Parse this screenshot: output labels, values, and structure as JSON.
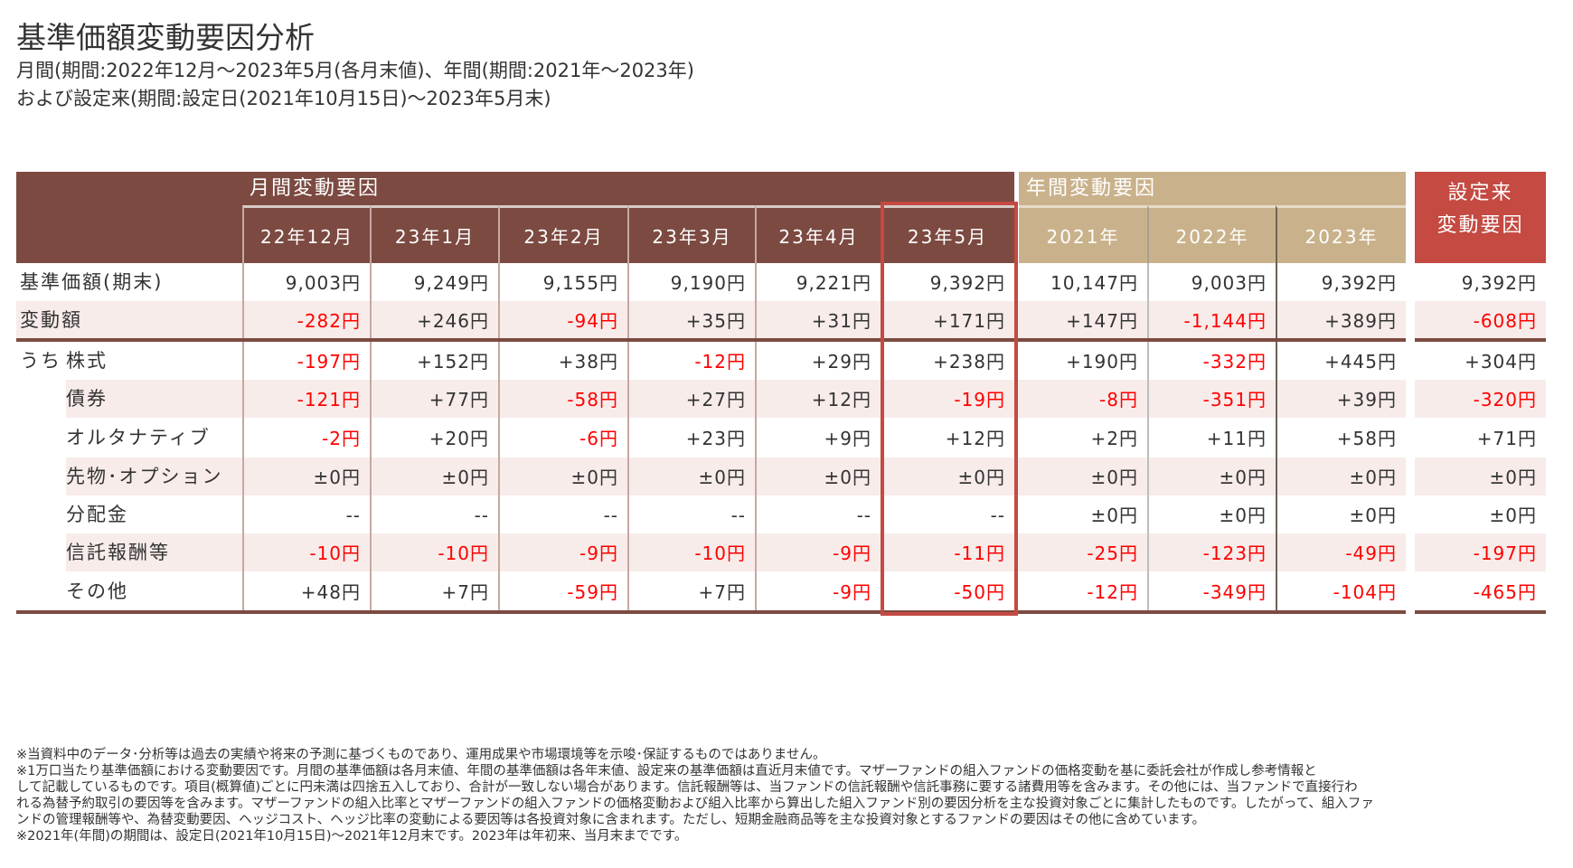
{
  "title": "基準価額変動要因分析",
  "subtitle_lines": [
    "月間(期間:2022年12月～2023年5月(各月末値)、年間(期間:2021年～2023年)",
    "および設定来(期間:設定日(2021年10月15日)～2023年5月末)"
  ],
  "headers": {
    "monthly_group": "月間変動要因",
    "annual_group": "年間変動要因",
    "since_inception": [
      "設定来",
      "変動要因"
    ],
    "monthly_columns": [
      "22年12月",
      "23年1月",
      "23年2月",
      "23年3月",
      "23年4月",
      "23年5月"
    ],
    "annual_columns": [
      "2021年",
      "2022年",
      "2023年"
    ],
    "highlighted_column": "23年5月"
  },
  "row_prefix": "うち",
  "rows": [
    {
      "label": "基準価額(期末)",
      "values": [
        "9,003円",
        "9,249円",
        "9,155円",
        "9,190円",
        "9,221円",
        "9,392円",
        "10,147円",
        "9,003円",
        "9,392円",
        "9,392円"
      ]
    },
    {
      "label": "変動額",
      "values": [
        "-282円",
        "+246円",
        "-94円",
        "+35円",
        "+31円",
        "+171円",
        "+147円",
        "-1,144円",
        "+389円",
        "-608円"
      ]
    },
    {
      "label": "株式",
      "values": [
        "-197円",
        "+152円",
        "+38円",
        "-12円",
        "+29円",
        "+238円",
        "+190円",
        "-332円",
        "+445円",
        "+304円"
      ]
    },
    {
      "label": "債券",
      "values": [
        "-121円",
        "+77円",
        "-58円",
        "+27円",
        "+12円",
        "-19円",
        "-8円",
        "-351円",
        "+39円",
        "-320円"
      ]
    },
    {
      "label": "オルタナティブ",
      "values": [
        "-2円",
        "+20円",
        "-6円",
        "+23円",
        "+9円",
        "+12円",
        "+2円",
        "+11円",
        "+58円",
        "+71円"
      ]
    },
    {
      "label": "先物･オプション",
      "values": [
        "±0円",
        "±0円",
        "±0円",
        "±0円",
        "±0円",
        "±0円",
        "±0円",
        "±0円",
        "±0円",
        "±0円"
      ]
    },
    {
      "label": "分配金",
      "values": [
        "--",
        "--",
        "--",
        "--",
        "--",
        "--",
        "±0円",
        "±0円",
        "±0円",
        "±0円"
      ]
    },
    {
      "label": "信託報酬等",
      "values": [
        "-10円",
        "-10円",
        "-9円",
        "-10円",
        "-9円",
        "-11円",
        "-25円",
        "-123円",
        "-49円",
        "-197円"
      ]
    },
    {
      "label": "その他",
      "values": [
        "+48円",
        "+7円",
        "-59円",
        "+7円",
        "-9円",
        "-50円",
        "-12円",
        "-349円",
        "-104円",
        "-465円"
      ]
    }
  ],
  "footnotes": [
    "※当資料中のデータ･分析等は過去の実績や将来の予測に基づくものであり、運用成果や市場環境等を示唆･保証するものではありません。",
    "※1万口当たり基準価額における変動要因です。月間の基準価額は各月末値、年間の基準価額は各年末値、設定来の基準価額は直近月末値です。マザーファンドの組入ファンドの価格変動を基に委託会社が作成し参考情報と",
    "して記載しているものです。項目(概算値)ごとに円未満は四捨五入しており、合計が一致しない場合があります。信託報酬等は、当ファンドの信託報酬や信託事務に要する諸費用等を含みます。その他には、当ファンドで直接行わ",
    "れる為替予約取引の要因等を含みます。マザーファンドの組入比率とマザーファンドの組入ファンドの価格変動および組入比率から算出した組入ファンド別の要因分析を主な投資対象ごとに集計したものです。したがって、組入ファ",
    "ンドの管理報酬等や、為替変動要因、ヘッジコスト、ヘッジ比率の変動による要因等は各投資対象に含まれます。ただし、短期金融商品等を主な投資対象とするファンドの要因はその他に含めています。",
    "※2021年(年間)の期間は、設定日(2021年10月15日)～2021年12月末です。2023年は年初来、当月末までです。"
  ],
  "colors": {
    "monthly_header": "#7c4a41",
    "annual_header": "#c9b28b",
    "since_header": "#c44a42",
    "highlight_border": "#c44a42",
    "stripe": "#f7ecea",
    "negative": "#ff0000",
    "text": "#333333"
  }
}
